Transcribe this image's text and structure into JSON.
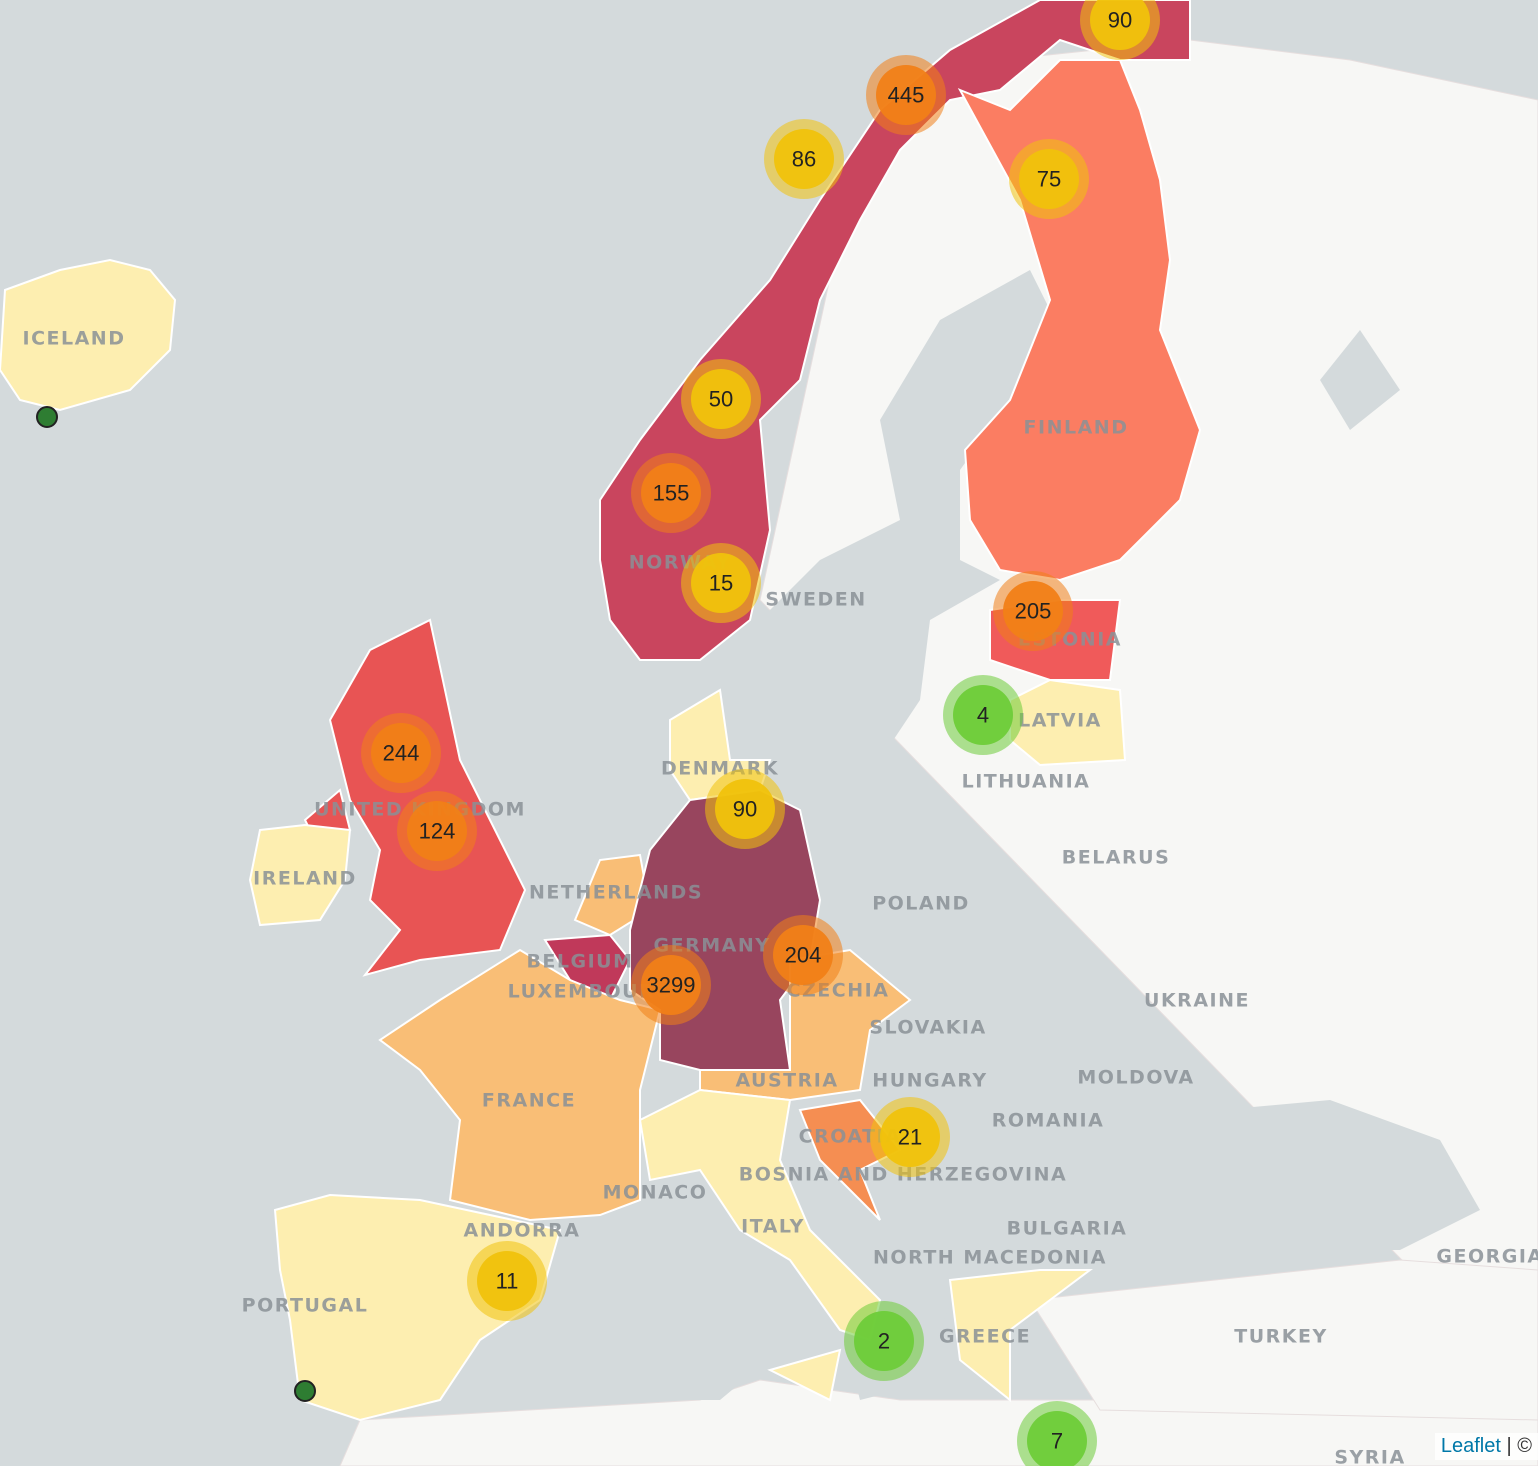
{
  "map": {
    "country_labels": [
      "ICELAND",
      "FINLAND",
      "SWEDEN",
      "NORWAY",
      "ESTONIA",
      "LATVIA",
      "LITHUANIA",
      "DENMARK",
      "UNITED KINGDOM",
      "IRELAND",
      "NETHERLANDS",
      "BELGIUM",
      "LUXEMBOURG",
      "GERMANY",
      "POLAND",
      "BELARUS",
      "UKRAINE",
      "CZECHIA",
      "SLOVAKIA",
      "HUNGARY",
      "MOLDOVA",
      "ROMANIA",
      "AUSTRIA",
      "FRANCE",
      "CROATIA",
      "BOSNIA AND HERZEGOVINA",
      "MONACO",
      "ANDORRA",
      "ITALY",
      "BULGARIA",
      "NORTH MACEDONIA",
      "GEORGIA",
      "GREECE",
      "TURKEY",
      "PORTUGAL",
      "SYRIA"
    ],
    "clusters": [
      90,
      445,
      86,
      75,
      50,
      155,
      15,
      205,
      4,
      244,
      124,
      90,
      204,
      3299,
      21,
      11,
      2,
      7
    ],
    "attribution": {
      "link": "Leaflet",
      "separator": "|",
      "copyright": "©"
    }
  }
}
